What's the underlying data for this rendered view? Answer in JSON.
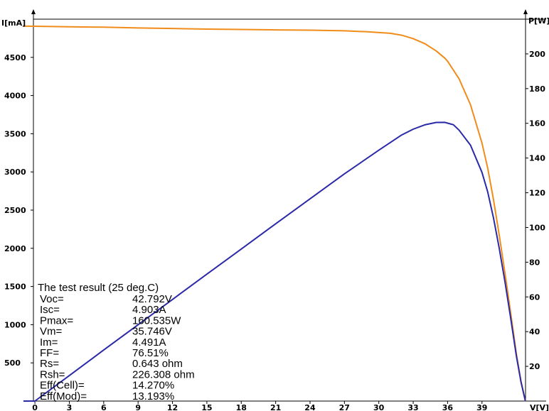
{
  "chart_data": {
    "type": "line",
    "title": "",
    "xlabel": "V[V]",
    "ylabel_left": "I[mA]",
    "ylabel_right": "P[W]",
    "xlim": [
      -1,
      42.8
    ],
    "ylim_left": [
      0,
      5000
    ],
    "ylim_right": [
      0,
      220
    ],
    "x_ticks": [
      "0",
      "3",
      "6",
      "9",
      "12",
      "15",
      "18",
      "21",
      "24",
      "27",
      "30",
      "33",
      "36",
      "39"
    ],
    "x_tick_values": [
      0,
      3,
      6,
      9,
      12,
      15,
      18,
      21,
      24,
      27,
      30,
      33,
      36,
      39
    ],
    "y_left_ticks": [
      "500",
      "1000",
      "1500",
      "2000",
      "2500",
      "3000",
      "3500",
      "4000",
      "4500"
    ],
    "y_left_tick_values": [
      500,
      1000,
      1500,
      2000,
      2500,
      3000,
      3500,
      4000,
      4500
    ],
    "y_right_ticks": [
      "20",
      "40",
      "60",
      "80",
      "100",
      "120",
      "140",
      "160",
      "180",
      "200"
    ],
    "y_right_tick_values": [
      20,
      40,
      60,
      80,
      100,
      120,
      140,
      160,
      180,
      200
    ],
    "grid": false,
    "legend": "none",
    "series": [
      {
        "axis": "left",
        "color": "#f08c1a",
        "x": [
          -1,
          3,
          6,
          9,
          12,
          15,
          18,
          21,
          24,
          27,
          29,
          31,
          32,
          33,
          34,
          35,
          35.75,
          36,
          37,
          38,
          39,
          39.5,
          40,
          40.5,
          41,
          41.5,
          42,
          42.4,
          42.79
        ],
        "values": [
          4910,
          4900,
          4895,
          4885,
          4878,
          4870,
          4865,
          4860,
          4856,
          4848,
          4835,
          4815,
          4790,
          4745,
          4680,
          4585,
          4491,
          4450,
          4220,
          3880,
          3380,
          3050,
          2640,
          2180,
          1680,
          1160,
          620,
          260,
          0
        ]
      },
      {
        "axis": "right",
        "color": "#2a2aa8",
        "x": [
          -1,
          0,
          3,
          6,
          9,
          12,
          15,
          18,
          21,
          24,
          27,
          30,
          32,
          33,
          34,
          35,
          35.75,
          36.5,
          37,
          38,
          39,
          39.5,
          40,
          40.5,
          41,
          41.5,
          42,
          42.4,
          42.79
        ],
        "values": [
          0,
          0,
          14.7,
          29.4,
          44.0,
          58.5,
          73.1,
          87.6,
          102.1,
          116.5,
          130.9,
          144.5,
          153.3,
          156.6,
          159.1,
          160.5,
          160.535,
          159.2,
          156.1,
          147.4,
          131.8,
          120.5,
          105.6,
          88.3,
          68.9,
          48.1,
          26.0,
          11.0,
          0
        ]
      }
    ]
  },
  "results": {
    "heading": "The test result (25 deg.C)",
    "rows": [
      {
        "label": "Voc=",
        "value": "42.792V"
      },
      {
        "label": "Isc=",
        "value": "4.903A"
      },
      {
        "label": "Pmax=",
        "value": "160.535W"
      },
      {
        "label": "Vm=",
        "value": "35.746V"
      },
      {
        "label": "Im=",
        "value": "4.491A"
      },
      {
        "label": "FF=",
        "value": "76.51%"
      },
      {
        "label": "Rs=",
        "value": "0.643 ohm"
      },
      {
        "label": "Rsh=",
        "value": "226.308 ohm"
      },
      {
        "label": "Eff(Cell)=",
        "value": "14.270%"
      },
      {
        "label": "Eff(Mod)=",
        "value": "13.193%"
      }
    ]
  }
}
